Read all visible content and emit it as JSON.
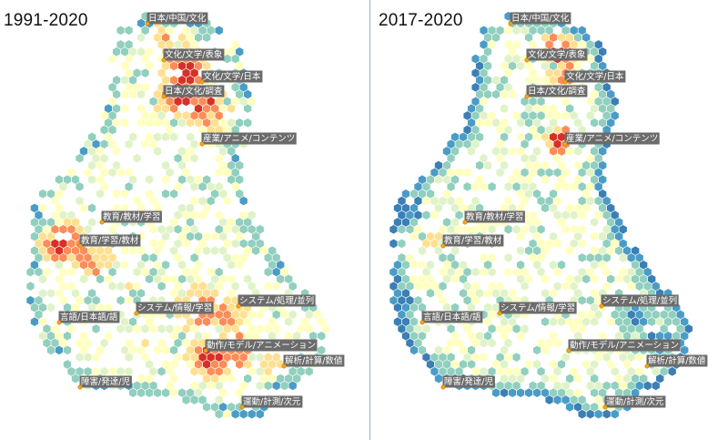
{
  "panels": [
    {
      "title": "1991-2020",
      "palette": "warm"
    },
    {
      "title": "2017-2020",
      "palette": "cool"
    }
  ],
  "labels": [
    "日本/中国/文化",
    "文化/文学/表象",
    "文化/文学/日本",
    "日本/文化/調査",
    "産業/アニメ/コンテンツ",
    "教育/教材/学習",
    "教育/学習/教材",
    "言語/日本語/語",
    "システム/情報/学習",
    "システム/処理/並列",
    "動作/モデル/アニメーション",
    "解析/計算/数値",
    "障害/発達/児",
    "運動/計測/次元"
  ],
  "colors": {
    "hot": "#d73027",
    "warm": "#fc8d59",
    "mid": "#fee090",
    "pale": "#ffffbf",
    "mint": "#e0f3c8",
    "teal": "#91cfbf",
    "blue": "#4a9cc7",
    "deep": "#3b7fb5"
  }
}
